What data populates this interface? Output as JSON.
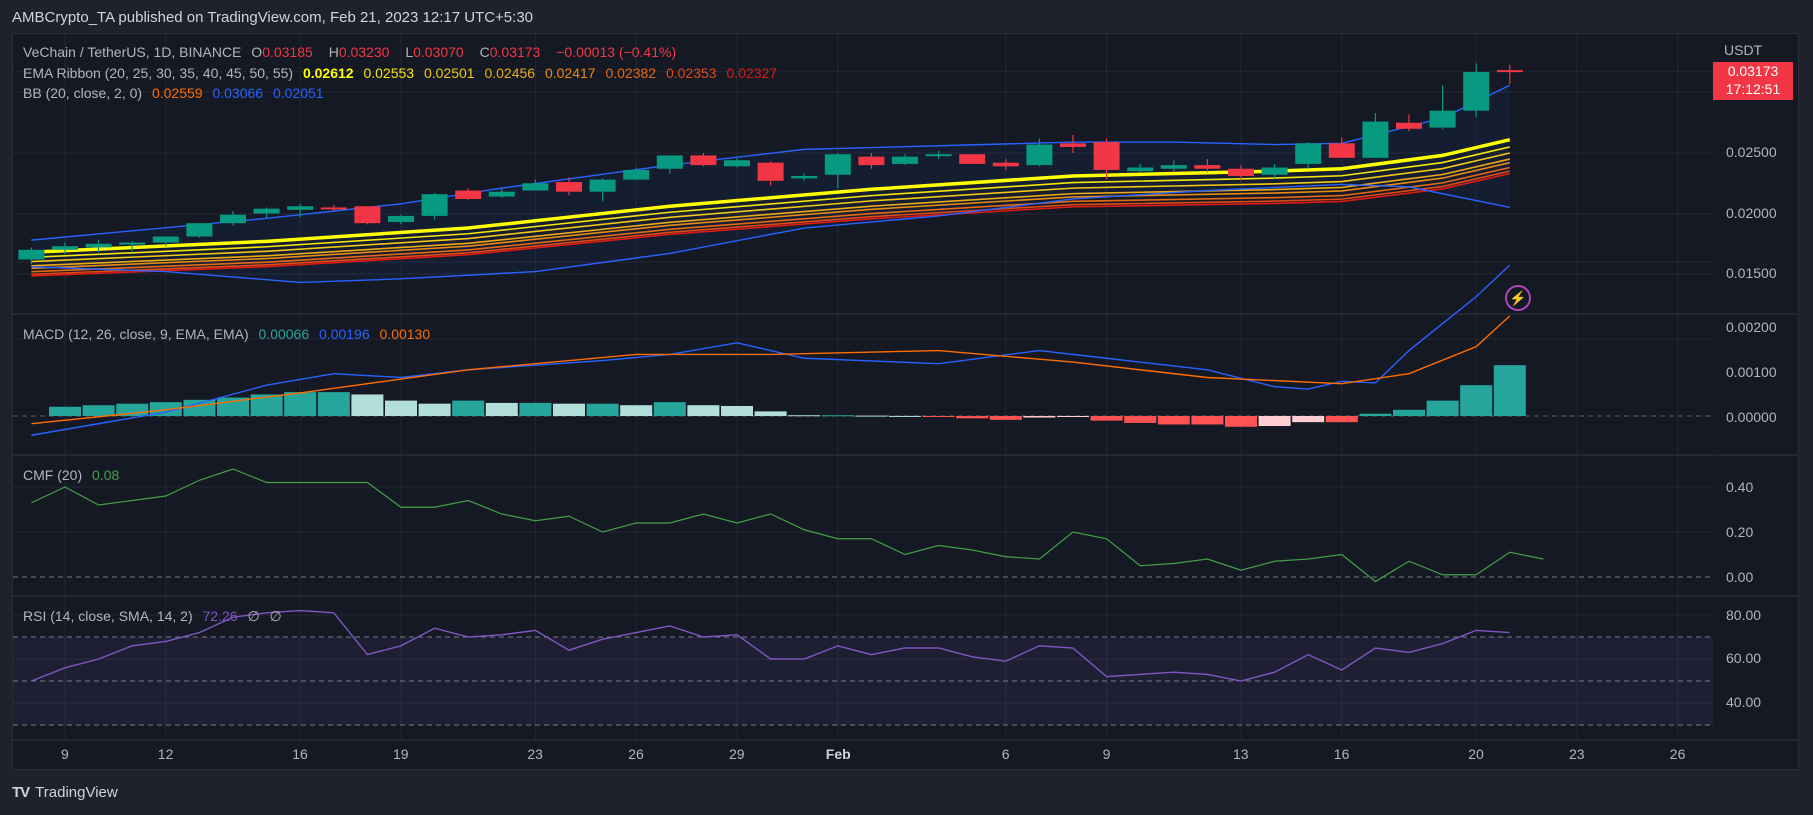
{
  "publisher_line": "AMBCrypto_TA published on TradingView.com, Feb 21, 2023 12:17 UTC+5:30",
  "footer": {
    "brand": "TradingView",
    "logo": "TV"
  },
  "price_axis": {
    "currency": "USDT",
    "last_price": "0.03173",
    "countdown": "17:12:51"
  },
  "legends": {
    "main": {
      "symbol": "VeChain / TetherUS, 1D, BINANCE",
      "o_label": "O",
      "o": "0.03185",
      "h_label": "H",
      "h": "0.03230",
      "l_label": "L",
      "l": "0.03070",
      "c_label": "C",
      "c": "0.03173",
      "change": "−0.00013 (−0.41%)"
    },
    "ema": {
      "label": "EMA Ribbon (20, 25, 30, 35, 40, 45, 50, 55)",
      "values": [
        "0.02612",
        "0.02553",
        "0.02501",
        "0.02456",
        "0.02417",
        "0.02382",
        "0.02353",
        "0.02327"
      ]
    },
    "bb": {
      "label": "BB (20, close, 2, 0)",
      "values": [
        "0.02559",
        "0.03066",
        "0.02051"
      ]
    },
    "macd": {
      "label": "MACD (12, 26, close, 9, EMA, EMA)",
      "values": [
        "0.00066",
        "0.00196",
        "0.00130"
      ]
    },
    "cmf": {
      "label": "CMF (20)",
      "value": "0.08"
    },
    "rsi": {
      "label": "RSI (14, close, SMA, 14, 2)",
      "value": "72.26",
      "extra1": "∅",
      "extra2": "∅"
    }
  },
  "colors": {
    "up": "#089981",
    "down": "#f23645",
    "bb": "#2962ff",
    "ema": [
      "#ffff00",
      "#f5e50a",
      "#f0c814",
      "#ecaa14",
      "#e88a14",
      "#e46a14",
      "#e04a14",
      "#dd1a14"
    ],
    "macd": "#2962ff",
    "signal": "#ff6d00",
    "hist_up_strong": "#26a69a",
    "hist_up_weak": "#b2dfdb",
    "hist_down_strong": "#ff5252",
    "hist_down_weak": "#ffcdd2",
    "cmf": "#43a047",
    "rsi": "#7e57c2"
  },
  "chart_data": {
    "type": "candlestick_with_indicators",
    "title": "VeChain / TetherUS, 1D, BINANCE",
    "x_ticks": [
      "9",
      "12",
      "16",
      "19",
      "23",
      "26",
      "29",
      "Feb",
      "6",
      "9",
      "13",
      "16",
      "20",
      "23",
      "26"
    ],
    "x_tick_day_index": [
      0,
      3,
      7,
      10,
      14,
      17,
      20,
      23,
      28,
      31,
      35,
      38,
      42,
      45,
      48
    ],
    "price_axis_ticks": [
      "0.02500",
      "0.02000",
      "0.01500"
    ],
    "candles": [
      {
        "d": -1,
        "o": 0.0162,
        "h": 0.0172,
        "l": 0.0158,
        "c": 0.017
      },
      {
        "d": 0,
        "o": 0.017,
        "h": 0.0176,
        "l": 0.0166,
        "c": 0.0173
      },
      {
        "d": 1,
        "o": 0.0172,
        "h": 0.0178,
        "l": 0.0168,
        "c": 0.0175
      },
      {
        "d": 2,
        "o": 0.0175,
        "h": 0.0177,
        "l": 0.0169,
        "c": 0.0176
      },
      {
        "d": 3,
        "o": 0.0176,
        "h": 0.0181,
        "l": 0.0173,
        "c": 0.0181
      },
      {
        "d": 4,
        "o": 0.0181,
        "h": 0.0192,
        "l": 0.018,
        "c": 0.0192
      },
      {
        "d": 5,
        "o": 0.0192,
        "h": 0.0202,
        "l": 0.019,
        "c": 0.0199
      },
      {
        "d": 6,
        "o": 0.02,
        "h": 0.0205,
        "l": 0.0196,
        "c": 0.0204
      },
      {
        "d": 7,
        "o": 0.0203,
        "h": 0.0208,
        "l": 0.0197,
        "c": 0.0206
      },
      {
        "d": 8,
        "o": 0.0205,
        "h": 0.0207,
        "l": 0.0202,
        "c": 0.0204
      },
      {
        "d": 9,
        "o": 0.0206,
        "h": 0.0206,
        "l": 0.0191,
        "c": 0.0192
      },
      {
        "d": 10,
        "o": 0.0193,
        "h": 0.0199,
        "l": 0.0191,
        "c": 0.0198
      },
      {
        "d": 11,
        "o": 0.0198,
        "h": 0.0217,
        "l": 0.0195,
        "c": 0.0216
      },
      {
        "d": 12,
        "o": 0.0219,
        "h": 0.0221,
        "l": 0.0211,
        "c": 0.0212
      },
      {
        "d": 13,
        "o": 0.0214,
        "h": 0.0221,
        "l": 0.0213,
        "c": 0.0218
      },
      {
        "d": 14,
        "o": 0.0219,
        "h": 0.0228,
        "l": 0.0219,
        "c": 0.0225
      },
      {
        "d": 15,
        "o": 0.0226,
        "h": 0.023,
        "l": 0.0215,
        "c": 0.0218
      },
      {
        "d": 16,
        "o": 0.0218,
        "h": 0.0229,
        "l": 0.021,
        "c": 0.0228
      },
      {
        "d": 17,
        "o": 0.0228,
        "h": 0.0238,
        "l": 0.0228,
        "c": 0.0236
      },
      {
        "d": 18,
        "o": 0.0237,
        "h": 0.0248,
        "l": 0.0233,
        "c": 0.0248
      },
      {
        "d": 19,
        "o": 0.0248,
        "h": 0.025,
        "l": 0.0239,
        "c": 0.024
      },
      {
        "d": 20,
        "o": 0.0239,
        "h": 0.0246,
        "l": 0.0238,
        "c": 0.0244
      },
      {
        "d": 21,
        "o": 0.0242,
        "h": 0.0243,
        "l": 0.0223,
        "c": 0.0227
      },
      {
        "d": 22,
        "o": 0.0229,
        "h": 0.0233,
        "l": 0.0227,
        "c": 0.0231
      },
      {
        "d": 23,
        "o": 0.0232,
        "h": 0.025,
        "l": 0.0221,
        "c": 0.0249
      },
      {
        "d": 24,
        "o": 0.0247,
        "h": 0.025,
        "l": 0.0237,
        "c": 0.024
      },
      {
        "d": 25,
        "o": 0.0241,
        "h": 0.0249,
        "l": 0.024,
        "c": 0.0247
      },
      {
        "d": 26,
        "o": 0.0248,
        "h": 0.0252,
        "l": 0.0245,
        "c": 0.0249
      },
      {
        "d": 27,
        "o": 0.0249,
        "h": 0.0245,
        "l": 0.0241,
        "c": 0.0241
      },
      {
        "d": 28,
        "o": 0.0242,
        "h": 0.0245,
        "l": 0.0236,
        "c": 0.0239
      },
      {
        "d": 29,
        "o": 0.024,
        "h": 0.0262,
        "l": 0.0239,
        "c": 0.0257
      },
      {
        "d": 30,
        "o": 0.0258,
        "h": 0.0265,
        "l": 0.025,
        "c": 0.0255
      },
      {
        "d": 31,
        "o": 0.0259,
        "h": 0.0262,
        "l": 0.0228,
        "c": 0.0236
      },
      {
        "d": 32,
        "o": 0.0235,
        "h": 0.0241,
        "l": 0.0234,
        "c": 0.0238
      },
      {
        "d": 33,
        "o": 0.0237,
        "h": 0.0244,
        "l": 0.0235,
        "c": 0.024
      },
      {
        "d": 34,
        "o": 0.024,
        "h": 0.0245,
        "l": 0.0234,
        "c": 0.0237
      },
      {
        "d": 35,
        "o": 0.0237,
        "h": 0.024,
        "l": 0.0227,
        "c": 0.0231
      },
      {
        "d": 36,
        "o": 0.0232,
        "h": 0.0241,
        "l": 0.0229,
        "c": 0.0238
      },
      {
        "d": 37,
        "o": 0.0241,
        "h": 0.0259,
        "l": 0.0237,
        "c": 0.0258
      },
      {
        "d": 38,
        "o": 0.0258,
        "h": 0.0263,
        "l": 0.0246,
        "c": 0.0246
      },
      {
        "d": 39,
        "o": 0.0246,
        "h": 0.0283,
        "l": 0.0246,
        "c": 0.0276
      },
      {
        "d": 40,
        "o": 0.0275,
        "h": 0.0282,
        "l": 0.0268,
        "c": 0.027
      },
      {
        "d": 41,
        "o": 0.0271,
        "h": 0.0306,
        "l": 0.027,
        "c": 0.0285
      },
      {
        "d": 42,
        "o": 0.0285,
        "h": 0.0324,
        "l": 0.028,
        "c": 0.0317
      },
      {
        "d": 43,
        "o": 0.03185,
        "h": 0.0323,
        "l": 0.0307,
        "c": 0.03173
      }
    ],
    "bb_upper": [
      [
        -1,
        0.0178
      ],
      [
        6,
        0.0196
      ],
      [
        10,
        0.0208
      ],
      [
        13,
        0.0221
      ],
      [
        18,
        0.024
      ],
      [
        22,
        0.0253
      ],
      [
        26,
        0.0256
      ],
      [
        30,
        0.0259
      ],
      [
        33,
        0.0259
      ],
      [
        36,
        0.0257
      ],
      [
        38,
        0.0258
      ],
      [
        41,
        0.0279
      ],
      [
        43,
        0.0306
      ]
    ],
    "bb_lower": [
      [
        -1,
        0.0156
      ],
      [
        3,
        0.0152
      ],
      [
        7,
        0.0143
      ],
      [
        10,
        0.0146
      ],
      [
        14,
        0.0152
      ],
      [
        18,
        0.0167
      ],
      [
        22,
        0.0188
      ],
      [
        26,
        0.0198
      ],
      [
        30,
        0.0212
      ],
      [
        34,
        0.0219
      ],
      [
        38,
        0.0224
      ],
      [
        40,
        0.0222
      ],
      [
        43,
        0.0205
      ]
    ],
    "ema_ribbon_first": [
      [
        -1,
        0.0168
      ],
      [
        6,
        0.0177
      ],
      [
        12,
        0.0188
      ],
      [
        18,
        0.0206
      ],
      [
        24,
        0.022
      ],
      [
        30,
        0.0231
      ],
      [
        36,
        0.0235
      ],
      [
        38,
        0.0237
      ],
      [
        41,
        0.0248
      ],
      [
        43,
        0.0261
      ]
    ],
    "ema_ribbon_spread": [
      0,
      0.0006,
      0.0011,
      0.0016,
      0.0019,
      0.0023,
      0.0026,
      0.0028
    ],
    "macd_axis_ticks": [
      "0.00200",
      "0.00100",
      "0.00000"
    ],
    "macd_line": [
      [
        -1,
        -0.00025
      ],
      [
        3,
        5e-05
      ],
      [
        6,
        0.0004
      ],
      [
        8,
        0.00055
      ],
      [
        10,
        0.0005
      ],
      [
        12,
        0.0006
      ],
      [
        16,
        0.00072
      ],
      [
        18,
        0.0008
      ],
      [
        20,
        0.00095
      ],
      [
        22,
        0.00075
      ],
      [
        26,
        0.00068
      ],
      [
        29,
        0.00085
      ],
      [
        31,
        0.00075
      ],
      [
        34,
        0.0006
      ],
      [
        36,
        0.00038
      ],
      [
        37,
        0.00035
      ],
      [
        38,
        0.00045
      ],
      [
        39,
        0.00043
      ],
      [
        40,
        0.00085
      ],
      [
        41,
        0.0012
      ],
      [
        42,
        0.00155
      ],
      [
        43,
        0.00196
      ]
    ],
    "signal_line": [
      [
        -1,
        -0.0001
      ],
      [
        3,
        8e-05
      ],
      [
        7,
        0.0003
      ],
      [
        12,
        0.0006
      ],
      [
        17,
        0.0008
      ],
      [
        21,
        0.0008
      ],
      [
        26,
        0.00085
      ],
      [
        30,
        0.0007
      ],
      [
        34,
        0.0005
      ],
      [
        38,
        0.00042
      ],
      [
        40,
        0.00055
      ],
      [
        42,
        0.0009
      ],
      [
        43,
        0.0013
      ]
    ],
    "macd_hist": [
      0.00012,
      0.00014,
      0.00016,
      0.00018,
      0.00021,
      0.00024,
      0.00028,
      0.00031,
      0.00031,
      0.00028,
      0.0002,
      0.00016,
      0.0002,
      0.00017,
      0.00017,
      0.00016,
      0.00016,
      0.00014,
      0.00018,
      0.00014,
      0.00013,
      6e-05,
      1e-05,
      1e-05,
      5e-06,
      1e-06,
      -5e-06,
      -3e-05,
      -5e-05,
      -2e-05,
      -1e-05,
      -6e-05,
      -9e-05,
      -0.00011,
      -0.00011,
      -0.00014,
      -0.00013,
      -8e-05,
      -8e-05,
      3e-05,
      8e-05,
      0.0002,
      0.0004,
      0.00066
    ],
    "cmf_axis_ticks": [
      "0.40",
      "0.20",
      "0.00"
    ],
    "cmf": [
      [
        -1,
        0.33
      ],
      [
        0,
        0.4
      ],
      [
        1,
        0.32
      ],
      [
        2,
        0.34
      ],
      [
        3,
        0.36
      ],
      [
        4,
        0.43
      ],
      [
        5,
        0.48
      ],
      [
        6,
        0.42
      ],
      [
        8,
        0.42
      ],
      [
        9,
        0.42
      ],
      [
        10,
        0.31
      ],
      [
        11,
        0.31
      ],
      [
        12,
        0.34
      ],
      [
        13,
        0.28
      ],
      [
        14,
        0.25
      ],
      [
        15,
        0.27
      ],
      [
        16,
        0.2
      ],
      [
        17,
        0.24
      ],
      [
        18,
        0.24
      ],
      [
        19,
        0.28
      ],
      [
        20,
        0.24
      ],
      [
        21,
        0.28
      ],
      [
        22,
        0.21
      ],
      [
        23,
        0.17
      ],
      [
        24,
        0.17
      ],
      [
        25,
        0.1
      ],
      [
        26,
        0.14
      ],
      [
        27,
        0.12
      ],
      [
        28,
        0.09
      ],
      [
        29,
        0.08
      ],
      [
        30,
        0.2
      ],
      [
        31,
        0.17
      ],
      [
        32,
        0.05
      ],
      [
        33,
        0.06
      ],
      [
        34,
        0.08
      ],
      [
        35,
        0.03
      ],
      [
        36,
        0.07
      ],
      [
        37,
        0.08
      ],
      [
        38,
        0.1
      ],
      [
        39,
        -0.02
      ],
      [
        40,
        0.07
      ],
      [
        41,
        0.01
      ],
      [
        42,
        0.01
      ],
      [
        43,
        0.11
      ],
      [
        44,
        0.08
      ]
    ],
    "rsi_axis_ticks": [
      "80.00",
      "60.00",
      "40.00"
    ],
    "rsi_bands": [
      70,
      50,
      30
    ],
    "rsi": [
      [
        -1,
        50
      ],
      [
        0,
        56
      ],
      [
        1,
        60
      ],
      [
        2,
        66
      ],
      [
        3,
        68
      ],
      [
        4,
        72
      ],
      [
        5,
        79
      ],
      [
        6,
        81
      ],
      [
        7,
        82
      ],
      [
        8,
        81
      ],
      [
        9,
        62
      ],
      [
        10,
        66
      ],
      [
        11,
        74
      ],
      [
        12,
        70
      ],
      [
        13,
        71
      ],
      [
        14,
        73
      ],
      [
        15,
        64
      ],
      [
        16,
        69
      ],
      [
        17,
        72
      ],
      [
        18,
        75
      ],
      [
        19,
        70
      ],
      [
        20,
        71
      ],
      [
        21,
        60
      ],
      [
        22,
        60
      ],
      [
        23,
        66
      ],
      [
        24,
        62
      ],
      [
        25,
        65
      ],
      [
        26,
        65
      ],
      [
        27,
        61
      ],
      [
        28,
        59
      ],
      [
        29,
        66
      ],
      [
        30,
        65
      ],
      [
        31,
        52
      ],
      [
        32,
        53
      ],
      [
        33,
        54
      ],
      [
        34,
        53
      ],
      [
        35,
        50
      ],
      [
        36,
        54
      ],
      [
        37,
        62
      ],
      [
        38,
        55
      ],
      [
        39,
        65
      ],
      [
        40,
        63
      ],
      [
        41,
        67
      ],
      [
        42,
        73
      ],
      [
        43,
        72
      ]
    ]
  }
}
